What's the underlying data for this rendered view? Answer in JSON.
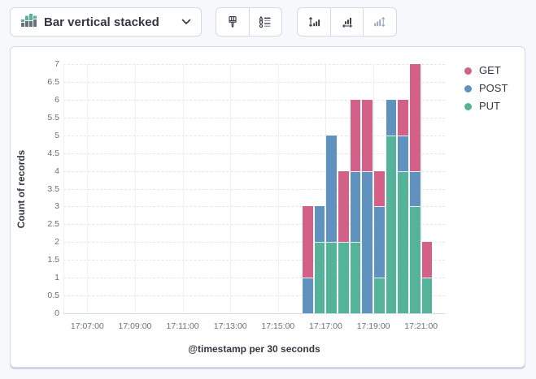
{
  "header": {
    "chart_type_selector": {
      "label": "Bar vertical stacked",
      "icon": "bar-vertical-stacked-icon",
      "chevron_icon": "chevron-down-icon"
    }
  },
  "toolbar": {
    "groups": [
      {
        "buttons": [
          {
            "name": "visual-options",
            "icon": "paintbrush-icon",
            "disabled": false
          },
          {
            "name": "legend-settings",
            "icon": "legend-list-icon",
            "disabled": false
          }
        ]
      },
      {
        "buttons": [
          {
            "name": "left-axis-settings",
            "icon": "axis-left-icon",
            "disabled": false
          },
          {
            "name": "bottom-axis-settings",
            "icon": "axis-bottom-icon",
            "disabled": false
          },
          {
            "name": "right-axis-settings",
            "icon": "axis-right-icon",
            "disabled": true
          }
        ]
      }
    ]
  },
  "colors": {
    "get": "#D36086",
    "post": "#6092C0",
    "put": "#54B399",
    "icon_green": "#54B399",
    "icon_gray": "#69707D",
    "disabled_icon": "#9aa3b5"
  },
  "chart_data": {
    "type": "bar",
    "stacked": true,
    "orientation": "vertical",
    "xlabel": "@timestamp per 30 seconds",
    "ylabel": "Count of records",
    "ylim": [
      0,
      7
    ],
    "y_tick_step": 0.5,
    "y_tick_labels": [
      "0",
      "0.5",
      "1",
      "1.5",
      "2",
      "2.5",
      "3",
      "3.5",
      "4",
      "4.5",
      "5",
      "5.5",
      "6",
      "6.5",
      "7"
    ],
    "x_tick_labels": [
      "17:07:00",
      "17:09:00",
      "17:11:00",
      "17:13:00",
      "17:15:00",
      "17:17:00",
      "17:19:00",
      "17:21:00"
    ],
    "x_domain": [
      "17:06:00",
      "17:22:00"
    ],
    "bucket_seconds": 30,
    "buckets": [
      "17:16:00",
      "17:16:30",
      "17:17:00",
      "17:17:30",
      "17:18:00",
      "17:18:30",
      "17:19:00",
      "17:19:30",
      "17:20:00",
      "17:20:30",
      "17:21:00"
    ],
    "series": [
      {
        "name": "GET",
        "color": "#D36086",
        "values": [
          2,
          0,
          0,
          2,
          2,
          2,
          1,
          0,
          1,
          3,
          1
        ]
      },
      {
        "name": "POST",
        "color": "#6092C0",
        "values": [
          1,
          1,
          3,
          0,
          2,
          4,
          2,
          1,
          1,
          1,
          0
        ]
      },
      {
        "name": "PUT",
        "color": "#54B399",
        "values": [
          0,
          2,
          2,
          2,
          2,
          0,
          1,
          5,
          4,
          3,
          1
        ]
      }
    ],
    "stack_order_bottom_to_top": [
      "PUT",
      "POST",
      "GET"
    ],
    "legend": {
      "position": "right",
      "items": [
        "GET",
        "POST",
        "PUT"
      ]
    },
    "grid": {
      "horizontal": "dashed",
      "vertical": "solid"
    }
  }
}
